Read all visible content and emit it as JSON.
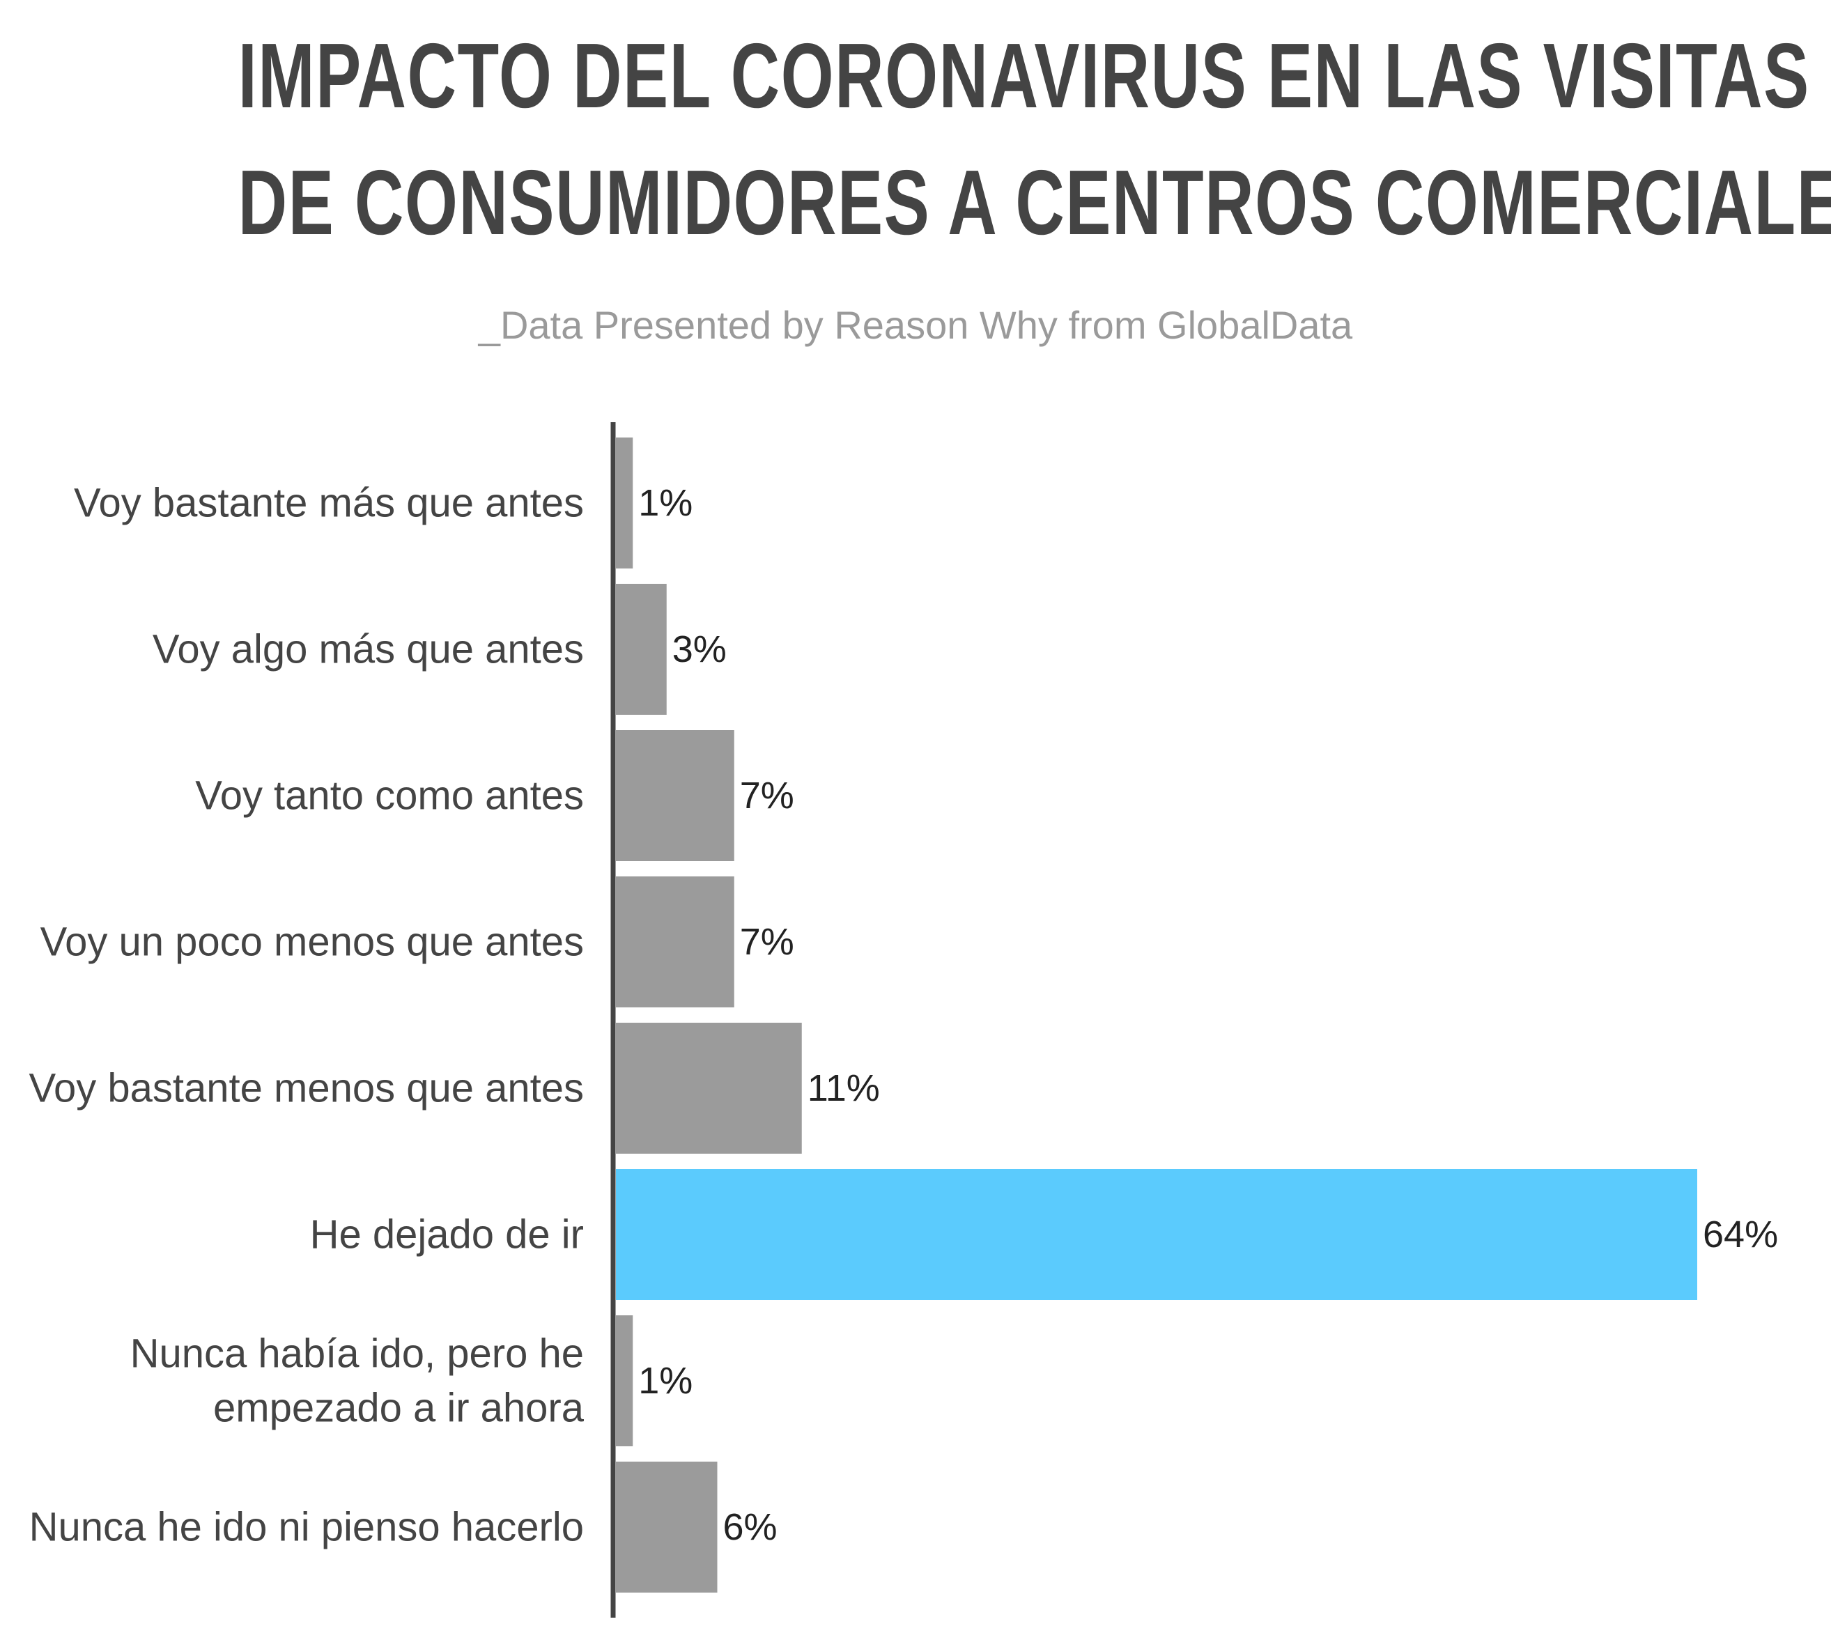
{
  "title_line1": "IMPACTO DEL CORONAVIRUS EN LAS VISITAS",
  "title_line2": "DE CONSUMIDORES A CENTROS COMERCIALES",
  "subtitle": "_Data Presented by Reason Why from GlobalData",
  "colors": {
    "title": "#444444",
    "subtitle": "#9a9a9a",
    "bar_default": "#9b9b9b",
    "bar_highlight": "#5bcbfd",
    "axis": "#444444",
    "label_text": "#444444",
    "value_text": "#222222"
  },
  "chart_data": {
    "type": "bar",
    "orientation": "horizontal",
    "title": "IMPACTO DEL CORONAVIRUS EN LAS VISITAS DE CONSUMIDORES A CENTROS COMERCIALES",
    "subtitle": "_Data Presented by Reason Why from GlobalData",
    "categories": [
      [
        "Voy bastante más que antes"
      ],
      [
        "Voy algo más que antes"
      ],
      [
        "Voy tanto como antes"
      ],
      [
        "Voy un poco menos que antes"
      ],
      [
        "Voy bastante menos que antes"
      ],
      [
        "He dejado de ir"
      ],
      [
        "Nunca había ido, pero he",
        "empezado a ir ahora"
      ],
      [
        "Nunca he ido ni pienso hacerlo"
      ]
    ],
    "values": [
      1,
      3,
      7,
      7,
      11,
      64,
      1,
      6
    ],
    "value_labels": [
      "1%",
      "3%",
      "7%",
      "7%",
      "11%",
      "64%",
      "1%",
      "6%"
    ],
    "highlight_index": 5,
    "unit": "%",
    "xlim": [
      0,
      64
    ],
    "grid": false,
    "legend": "none"
  }
}
